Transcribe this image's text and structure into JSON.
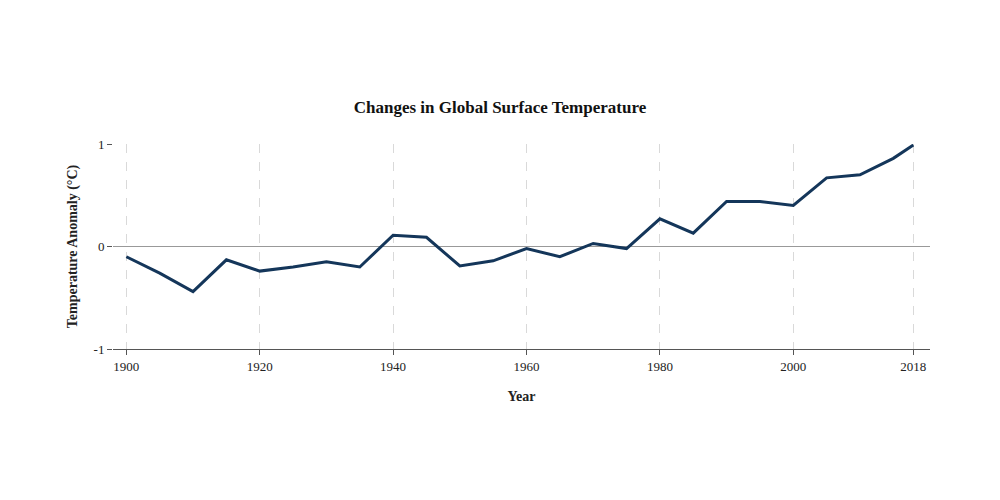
{
  "chart_data": {
    "type": "line",
    "title": "Changes in Global Surface Temperature",
    "x_label": "Year",
    "y_label": "Temperature Anomaly (°C)",
    "x": [
      1900,
      1905,
      1910,
      1915,
      1920,
      1925,
      1930,
      1935,
      1940,
      1945,
      1950,
      1955,
      1960,
      1965,
      1970,
      1975,
      1980,
      1985,
      1990,
      1995,
      2000,
      2005,
      2010,
      2015,
      2018
    ],
    "values": [
      -0.1,
      -0.26,
      -0.44,
      -0.13,
      -0.24,
      -0.2,
      -0.15,
      -0.2,
      0.11,
      0.09,
      -0.19,
      -0.14,
      -0.02,
      -0.1,
      0.03,
      -0.02,
      0.27,
      0.13,
      0.44,
      0.44,
      0.4,
      0.67,
      0.7,
      0.86,
      0.99
    ],
    "color": "#14365a",
    "xlim": [
      1898,
      2020.5
    ],
    "xticks": [
      1900,
      1920,
      1940,
      1960,
      1980,
      2000,
      2018
    ],
    "ylim": [
      -1,
      1
    ],
    "yticks": [
      -1,
      0,
      1
    ],
    "grid": true
  }
}
